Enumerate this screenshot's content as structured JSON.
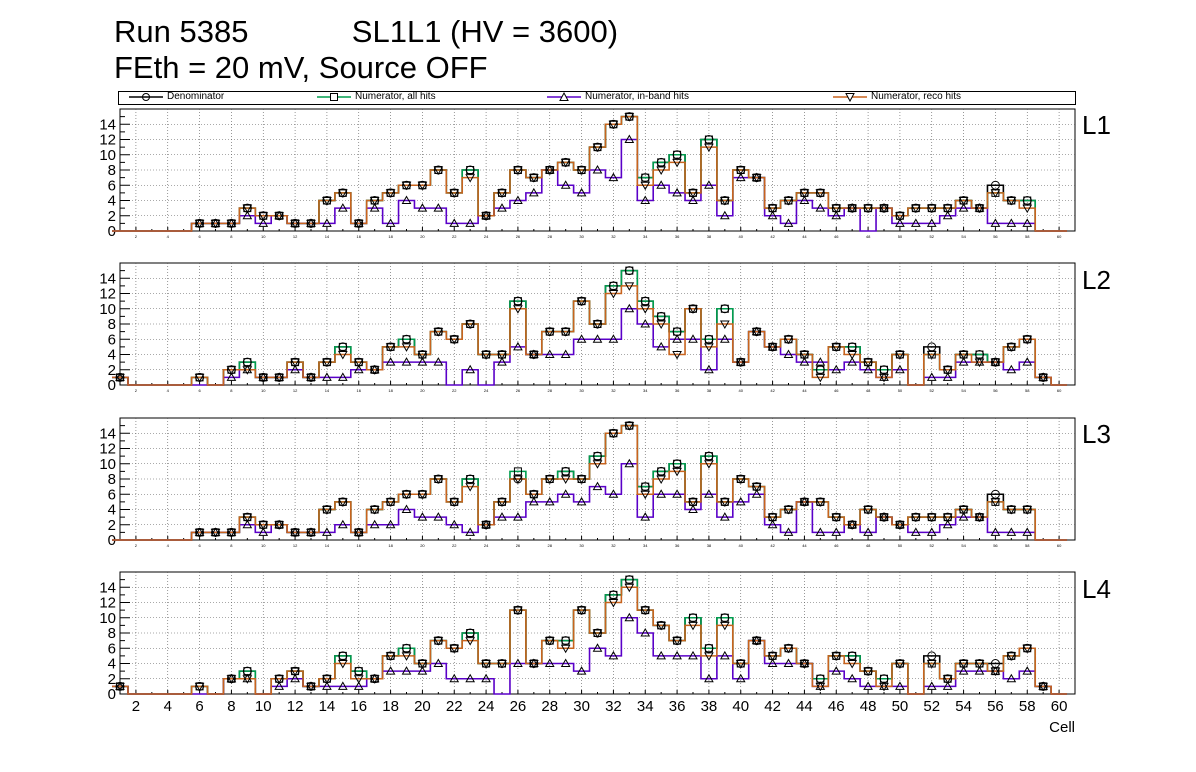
{
  "title_line1": "Run 5385            SL1L1 (HV = 3600)",
  "title_line2": "FEth = 20 mV, Source OFF",
  "legend": [
    {
      "label": "Denominator",
      "color": "#000000",
      "marker": "circle"
    },
    {
      "label": "Numerator, all hits",
      "color": "#009e4f",
      "marker": "square"
    },
    {
      "label": "Numerator, in-band hits",
      "color": "#5a00c8",
      "marker": "triangle-up"
    },
    {
      "label": "Numerator, reco hits",
      "color": "#c8641e",
      "marker": "triangle-down"
    }
  ],
  "chart_data": {
    "type": "histogram-step",
    "xlabel": "Cell",
    "x_range": [
      1,
      61
    ],
    "y_range": [
      0,
      16
    ],
    "y_ticks": [
      0,
      2,
      4,
      6,
      8,
      10,
      12,
      14
    ],
    "x_ticks": [
      2,
      4,
      6,
      8,
      10,
      12,
      14,
      16,
      18,
      20,
      22,
      24,
      26,
      28,
      30,
      32,
      34,
      36,
      38,
      40,
      42,
      44,
      46,
      48,
      50,
      52,
      54,
      56,
      58,
      60
    ],
    "grid": true,
    "panels": [
      {
        "label": "L1",
        "denominator": [
          0,
          0,
          0,
          0,
          0,
          1,
          1,
          1,
          3,
          2,
          2,
          1,
          1,
          4,
          5,
          1,
          4,
          5,
          6,
          6,
          8,
          5,
          8,
          2,
          5,
          8,
          7,
          8,
          9,
          8,
          11,
          14,
          15,
          7,
          9,
          10,
          5,
          12,
          4,
          8,
          7,
          3,
          4,
          5,
          5,
          3,
          3,
          3,
          3,
          2,
          3,
          3,
          3,
          4,
          3,
          6,
          4,
          4,
          0,
          0
        ],
        "numerator_all": [
          0,
          0,
          0,
          0,
          0,
          1,
          1,
          1,
          3,
          2,
          2,
          1,
          1,
          4,
          5,
          1,
          4,
          5,
          6,
          6,
          8,
          5,
          8,
          2,
          5,
          8,
          7,
          8,
          9,
          8,
          11,
          14,
          15,
          7,
          9,
          10,
          5,
          12,
          4,
          8,
          7,
          3,
          4,
          5,
          5,
          3,
          3,
          3,
          3,
          2,
          3,
          3,
          3,
          4,
          3,
          5,
          4,
          4,
          0,
          0
        ],
        "numerator_inband": [
          0,
          0,
          0,
          0,
          0,
          1,
          1,
          1,
          2,
          1,
          2,
          1,
          1,
          1,
          3,
          1,
          3,
          1,
          4,
          3,
          3,
          1,
          1,
          2,
          3,
          4,
          5,
          8,
          6,
          5,
          8,
          7,
          12,
          4,
          6,
          5,
          4,
          6,
          2,
          7,
          7,
          2,
          1,
          4,
          3,
          2,
          3,
          0,
          3,
          1,
          1,
          1,
          2,
          3,
          3,
          1,
          1,
          1,
          0,
          0
        ],
        "numerator_reco": [
          0,
          0,
          0,
          0,
          0,
          1,
          1,
          1,
          3,
          2,
          2,
          1,
          1,
          4,
          5,
          1,
          4,
          5,
          6,
          6,
          8,
          5,
          7,
          2,
          5,
          8,
          7,
          8,
          9,
          8,
          11,
          14,
          15,
          6,
          8,
          9,
          5,
          11,
          4,
          8,
          7,
          3,
          4,
          5,
          5,
          3,
          3,
          3,
          3,
          2,
          3,
          3,
          3,
          4,
          3,
          5,
          4,
          3,
          0,
          0
        ]
      },
      {
        "label": "L2",
        "denominator": [
          1,
          0,
          0,
          0,
          0,
          1,
          0,
          2,
          3,
          1,
          1,
          3,
          1,
          3,
          5,
          3,
          2,
          5,
          6,
          4,
          7,
          6,
          8,
          4,
          4,
          11,
          4,
          7,
          7,
          11,
          8,
          13,
          15,
          11,
          9,
          7,
          10,
          6,
          10,
          3,
          7,
          5,
          6,
          4,
          2,
          5,
          5,
          3,
          2,
          4,
          0,
          5,
          2,
          4,
          4,
          3,
          5,
          6,
          1,
          0
        ],
        "numerator_all": [
          1,
          0,
          0,
          0,
          0,
          1,
          0,
          2,
          3,
          1,
          1,
          3,
          1,
          3,
          5,
          3,
          2,
          5,
          6,
          4,
          7,
          6,
          8,
          4,
          4,
          11,
          4,
          7,
          7,
          11,
          8,
          13,
          15,
          11,
          9,
          7,
          10,
          6,
          10,
          3,
          7,
          5,
          6,
          4,
          2,
          5,
          5,
          3,
          2,
          4,
          0,
          4,
          2,
          4,
          4,
          3,
          5,
          6,
          1,
          0
        ],
        "numerator_inband": [
          1,
          0,
          0,
          0,
          0,
          0,
          0,
          1,
          2,
          1,
          1,
          2,
          1,
          1,
          1,
          2,
          2,
          3,
          3,
          3,
          3,
          0,
          2,
          0,
          3,
          5,
          4,
          4,
          4,
          6,
          6,
          6,
          10,
          8,
          5,
          6,
          6,
          2,
          6,
          3,
          7,
          5,
          4,
          3,
          3,
          2,
          3,
          2,
          1,
          2,
          0,
          1,
          1,
          3,
          3,
          3,
          2,
          3,
          1,
          0
        ],
        "numerator_reco": [
          1,
          0,
          0,
          0,
          0,
          1,
          0,
          2,
          2,
          1,
          1,
          3,
          1,
          3,
          4,
          3,
          2,
          5,
          5,
          4,
          7,
          6,
          8,
          4,
          4,
          10,
          4,
          7,
          7,
          11,
          8,
          12,
          13,
          10,
          8,
          4,
          10,
          5,
          8,
          3,
          7,
          5,
          6,
          4,
          1,
          5,
          4,
          3,
          1,
          4,
          0,
          4,
          2,
          4,
          3,
          3,
          5,
          6,
          1,
          0
        ]
      },
      {
        "label": "L3",
        "denominator": [
          0,
          0,
          0,
          0,
          0,
          1,
          1,
          1,
          3,
          2,
          2,
          1,
          1,
          4,
          5,
          1,
          4,
          5,
          6,
          6,
          8,
          5,
          8,
          2,
          5,
          8,
          6,
          8,
          9,
          8,
          11,
          14,
          15,
          7,
          9,
          10,
          5,
          11,
          5,
          8,
          7,
          3,
          4,
          5,
          5,
          3,
          2,
          4,
          3,
          2,
          3,
          3,
          3,
          4,
          3,
          6,
          4,
          4,
          0,
          0
        ],
        "numerator_all": [
          0,
          0,
          0,
          0,
          0,
          1,
          1,
          1,
          3,
          2,
          2,
          1,
          1,
          4,
          5,
          1,
          4,
          5,
          6,
          6,
          8,
          5,
          8,
          2,
          5,
          9,
          6,
          8,
          9,
          8,
          11,
          14,
          15,
          7,
          9,
          10,
          5,
          11,
          5,
          8,
          7,
          3,
          4,
          5,
          5,
          3,
          2,
          4,
          3,
          2,
          3,
          3,
          3,
          4,
          3,
          5,
          4,
          4,
          0,
          0
        ],
        "numerator_inband": [
          0,
          0,
          0,
          0,
          0,
          1,
          1,
          1,
          2,
          1,
          2,
          1,
          1,
          1,
          2,
          1,
          2,
          2,
          4,
          3,
          3,
          2,
          1,
          2,
          3,
          3,
          5,
          5,
          6,
          5,
          7,
          6,
          10,
          3,
          6,
          6,
          4,
          6,
          3,
          5,
          6,
          2,
          1,
          5,
          1,
          1,
          2,
          1,
          3,
          2,
          1,
          1,
          2,
          3,
          3,
          1,
          1,
          1,
          0,
          0
        ],
        "numerator_reco": [
          0,
          0,
          0,
          0,
          0,
          1,
          1,
          1,
          3,
          2,
          2,
          1,
          1,
          4,
          5,
          1,
          4,
          5,
          6,
          6,
          8,
          5,
          7,
          2,
          5,
          8,
          6,
          8,
          8,
          8,
          10,
          14,
          15,
          6,
          8,
          9,
          5,
          10,
          5,
          8,
          7,
          3,
          4,
          5,
          5,
          3,
          2,
          4,
          3,
          2,
          3,
          3,
          3,
          4,
          3,
          5,
          4,
          4,
          0,
          0
        ]
      },
      {
        "label": "L4",
        "denominator": [
          1,
          0,
          0,
          0,
          0,
          1,
          0,
          2,
          3,
          0,
          2,
          3,
          1,
          2,
          5,
          3,
          2,
          5,
          6,
          4,
          7,
          6,
          8,
          4,
          4,
          11,
          4,
          7,
          7,
          11,
          8,
          13,
          15,
          11,
          9,
          7,
          10,
          6,
          10,
          4,
          7,
          5,
          6,
          4,
          2,
          5,
          5,
          3,
          2,
          4,
          0,
          5,
          2,
          4,
          4,
          4,
          5,
          6,
          1,
          0
        ],
        "numerator_all": [
          1,
          0,
          0,
          0,
          0,
          1,
          0,
          2,
          3,
          0,
          2,
          3,
          1,
          2,
          5,
          3,
          2,
          5,
          6,
          4,
          7,
          6,
          8,
          4,
          4,
          11,
          4,
          7,
          7,
          11,
          8,
          13,
          15,
          11,
          9,
          7,
          10,
          6,
          10,
          4,
          7,
          5,
          6,
          4,
          2,
          5,
          5,
          3,
          2,
          4,
          0,
          4,
          2,
          4,
          4,
          3,
          5,
          6,
          1,
          0
        ],
        "numerator_inband": [
          1,
          0,
          0,
          0,
          0,
          0,
          0,
          2,
          2,
          0,
          1,
          2,
          1,
          1,
          1,
          1,
          2,
          3,
          3,
          3,
          4,
          2,
          2,
          2,
          0,
          4,
          4,
          4,
          4,
          3,
          6,
          5,
          10,
          8,
          5,
          5,
          5,
          2,
          5,
          2,
          7,
          4,
          4,
          4,
          1,
          3,
          2,
          1,
          1,
          1,
          0,
          1,
          1,
          3,
          3,
          3,
          2,
          3,
          1,
          0
        ],
        "numerator_reco": [
          1,
          0,
          0,
          0,
          0,
          1,
          0,
          2,
          2,
          0,
          2,
          3,
          1,
          2,
          4,
          2,
          2,
          5,
          5,
          4,
          7,
          6,
          7,
          4,
          4,
          11,
          4,
          7,
          6,
          11,
          8,
          12,
          14,
          11,
          9,
          7,
          9,
          5,
          9,
          4,
          7,
          5,
          6,
          4,
          1,
          5,
          4,
          3,
          1,
          4,
          0,
          4,
          2,
          4,
          4,
          3,
          5,
          6,
          1,
          0
        ]
      }
    ]
  }
}
